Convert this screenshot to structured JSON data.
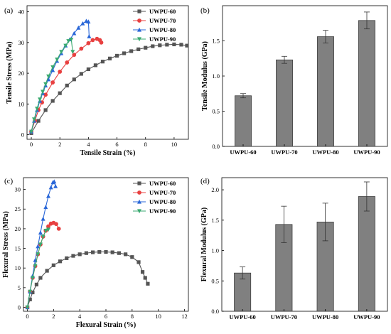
{
  "chart_data": [
    {
      "panel_label": "(a)",
      "type": "line",
      "xlabel": "Tensile Strain (%)",
      "ylabel": "Tensile Stress (MPa)",
      "xlim": [
        -0.3,
        11
      ],
      "ylim": [
        -1.5,
        42
      ],
      "xticks": [
        0,
        2,
        4,
        6,
        8,
        10
      ],
      "yticks": [
        0,
        10,
        20,
        30,
        40
      ],
      "legend_position": "top-right",
      "series": [
        {
          "name": "UWPU-60",
          "color": "#555555",
          "marker": "square",
          "x": [
            0,
            0.5,
            1,
            1.5,
            2,
            2.5,
            3,
            3.5,
            4,
            4.5,
            5,
            5.5,
            6,
            6.5,
            7,
            7.5,
            8,
            8.5,
            9,
            9.5,
            10,
            10.5,
            10.9
          ],
          "y": [
            0.5,
            4.5,
            8,
            11,
            13.5,
            16,
            18,
            19.8,
            21.3,
            22.6,
            23.8,
            24.8,
            25.7,
            26.5,
            27.2,
            27.8,
            28.3,
            28.8,
            29.1,
            29.3,
            29.4,
            29.3,
            29.0
          ]
        },
        {
          "name": "UWPU-70",
          "color": "#e84040",
          "marker": "circle",
          "x": [
            0,
            0.25,
            0.5,
            0.75,
            1,
            1.5,
            2,
            2.5,
            3,
            3.5,
            4,
            4.3,
            4.6,
            4.8,
            4.9
          ],
          "y": [
            1,
            4.5,
            8,
            10.5,
            13,
            17,
            20.5,
            23.5,
            26,
            28,
            29.8,
            30.8,
            31.2,
            30.8,
            30
          ],
          "x_end_note": ""
        },
        {
          "name": "UWPU-80",
          "color": "#2a67d8",
          "marker": "triangle-up",
          "x": [
            0,
            0.2,
            0.4,
            0.6,
            0.8,
            1,
            1.2,
            1.5,
            1.8,
            2.1,
            2.4,
            2.7,
            3,
            3.3,
            3.6,
            3.85,
            4,
            4.05
          ],
          "y": [
            1,
            4.5,
            8,
            11,
            13.5,
            16,
            18,
            21,
            24,
            26.5,
            29,
            31,
            33,
            34.8,
            36.2,
            37,
            36.8,
            32
          ]
        },
        {
          "name": "UWPU-90",
          "color": "#3aaa70",
          "marker": "triangle-down",
          "x": [
            0,
            0.2,
            0.4,
            0.6,
            0.8,
            1,
            1.2,
            1.5,
            1.8,
            2.1,
            2.4,
            2.6,
            2.8,
            2.9
          ],
          "y": [
            1,
            5,
            8.5,
            11.5,
            14,
            16.5,
            19,
            22,
            24.5,
            27,
            29,
            30.5,
            31,
            27
          ]
        }
      ]
    },
    {
      "panel_label": "(b)",
      "type": "bar",
      "xlabel": "",
      "ylabel": "Tensile Modulus (GPa)",
      "ylim": [
        0,
        2.0
      ],
      "yticks": [
        "0.0",
        "0.5",
        "1.0",
        "1.5"
      ],
      "yticks_values": [
        0,
        0.5,
        1.0,
        1.5
      ],
      "categories": [
        "UWPU-60",
        "UWPU-70",
        "UWPU-80",
        "UWPU-90"
      ],
      "values": [
        0.72,
        1.23,
        1.56,
        1.79
      ],
      "errors": [
        0.03,
        0.05,
        0.09,
        0.12
      ],
      "bar_color": "#808080"
    },
    {
      "panel_label": "(c)",
      "type": "line",
      "xlabel": "Flexural Strain (%)",
      "ylabel": "Flexural Stress (MPa)",
      "xlim": [
        -0.3,
        12.3
      ],
      "ylim": [
        -1,
        33
      ],
      "xticks": [
        0,
        2,
        4,
        6,
        8,
        10,
        12
      ],
      "yticks": [
        0,
        5,
        10,
        15,
        20,
        25,
        30
      ],
      "legend_position": "top-right",
      "series": [
        {
          "name": "UWPU-60",
          "color": "#555555",
          "marker": "square",
          "x": [
            0,
            0.2,
            0.4,
            0.7,
            1,
            1.5,
            2,
            2.5,
            3,
            3.5,
            4,
            4.5,
            5,
            5.5,
            6,
            6.5,
            7,
            7.5,
            8,
            8.5,
            8.8,
            9,
            9.2
          ],
          "y": [
            0,
            2,
            3.8,
            5.8,
            7.5,
            9.3,
            10.7,
            11.7,
            12.5,
            13.1,
            13.5,
            13.8,
            14,
            14.1,
            14.1,
            14,
            13.8,
            13.5,
            12.8,
            11.5,
            9,
            7.5,
            6
          ]
        },
        {
          "name": "UWPU-70",
          "color": "#e84040",
          "marker": "circle",
          "x": [
            0,
            0.2,
            0.4,
            0.6,
            0.8,
            1,
            1.2,
            1.4,
            1.6,
            1.8,
            2,
            2.2,
            2.4
          ],
          "y": [
            0,
            4,
            7.5,
            10.5,
            13.5,
            16,
            18,
            19.5,
            20.6,
            21.3,
            21.5,
            21.2,
            20
          ]
        },
        {
          "name": "UWPU-80",
          "color": "#2a67d8",
          "marker": "triangle-up",
          "x": [
            0,
            0.2,
            0.4,
            0.6,
            0.8,
            1,
            1.2,
            1.4,
            1.6,
            1.8,
            1.95,
            2.05,
            2.15
          ],
          "y": [
            0,
            4,
            8,
            12,
            15.5,
            19,
            22.5,
            25.5,
            28.3,
            30.5,
            31.8,
            32,
            30.8
          ]
        },
        {
          "name": "UWPU-90",
          "color": "#3aaa70",
          "marker": "triangle-down",
          "x": [
            0,
            0.2,
            0.4,
            0.6,
            0.8,
            1,
            1.2,
            1.4,
            1.6
          ],
          "y": [
            0,
            4,
            7.5,
            10.5,
            13.5,
            16,
            18,
            19.5,
            19.8
          ]
        }
      ]
    },
    {
      "panel_label": "(d)",
      "type": "bar",
      "xlabel": "",
      "ylabel": "Flexural Modulus (GPa)",
      "ylim": [
        0,
        2.2
      ],
      "yticks": [
        "0.0",
        "0.5",
        "1.0",
        "1.5",
        "2.0"
      ],
      "yticks_values": [
        0,
        0.5,
        1.0,
        1.5,
        2.0
      ],
      "categories": [
        "UWPU-60",
        "UWPU-70",
        "UWPU-80",
        "UWPU-90"
      ],
      "values": [
        0.63,
        1.43,
        1.47,
        1.89
      ],
      "errors": [
        0.1,
        0.3,
        0.31,
        0.24
      ],
      "bar_color": "#808080"
    }
  ]
}
